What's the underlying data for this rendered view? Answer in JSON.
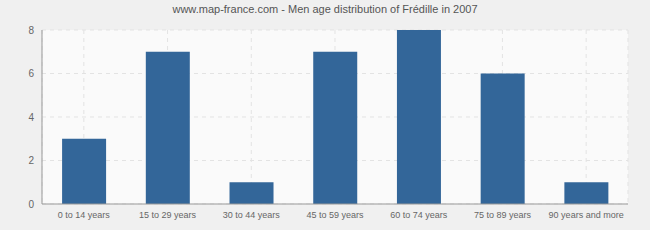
{
  "chart_data": {
    "type": "bar",
    "title": "www.map-france.com - Men age distribution of Frédille in 2007",
    "categories": [
      "0 to 14 years",
      "15 to 29 years",
      "30 to 44 years",
      "45 to 59 years",
      "60 to 74 years",
      "75 to 89 years",
      "90 years and more"
    ],
    "values": [
      3,
      7,
      1,
      7,
      8,
      6,
      1
    ],
    "color": "#336699",
    "ylim": [
      0,
      8
    ],
    "yticks": [
      0,
      2,
      4,
      6,
      8
    ],
    "grid": true
  }
}
